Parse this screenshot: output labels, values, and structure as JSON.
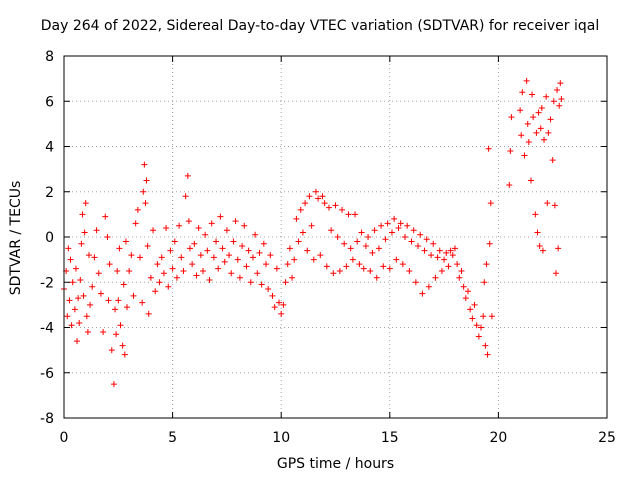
{
  "chart_data": {
    "type": "scatter",
    "title": "Day 264 of 2022, Sidereal Day-to-day VTEC variation (SDTVAR) for receiver iqal",
    "xlabel": "GPS time / hours",
    "ylabel": "SDTVAR / TECUs",
    "xlim": [
      0,
      25
    ],
    "ylim": [
      -8,
      8
    ],
    "xticks": [
      0,
      5,
      10,
      15,
      20,
      25
    ],
    "yticks": [
      -8,
      -6,
      -4,
      -2,
      0,
      2,
      4,
      6,
      8
    ],
    "grid": true,
    "marker": "+",
    "color": "#ff0000",
    "series": [
      {
        "name": "SDTVAR",
        "points": [
          [
            0.0,
            -2.3
          ],
          [
            0.1,
            -1.5
          ],
          [
            0.15,
            -3.5
          ],
          [
            0.2,
            -0.5
          ],
          [
            0.25,
            -2.8
          ],
          [
            0.3,
            -1.0
          ],
          [
            0.35,
            -3.9
          ],
          [
            0.4,
            -2.0
          ],
          [
            0.5,
            -3.2
          ],
          [
            0.55,
            -1.4
          ],
          [
            0.6,
            -4.6
          ],
          [
            0.65,
            -2.7
          ],
          [
            0.7,
            -3.8
          ],
          [
            0.75,
            -1.9
          ],
          [
            0.8,
            -0.3
          ],
          [
            0.85,
            1.0
          ],
          [
            0.9,
            -2.6
          ],
          [
            0.95,
            0.2
          ],
          [
            1.0,
            1.5
          ],
          [
            1.05,
            -3.5
          ],
          [
            1.1,
            -4.2
          ],
          [
            1.15,
            -0.8
          ],
          [
            1.2,
            -3.0
          ],
          [
            1.3,
            -2.2
          ],
          [
            1.4,
            -0.9
          ],
          [
            1.5,
            0.3
          ],
          [
            1.6,
            -1.6
          ],
          [
            1.7,
            -2.5
          ],
          [
            1.8,
            -4.2
          ],
          [
            1.9,
            0.9
          ],
          [
            2.0,
            0.0
          ],
          [
            2.05,
            -2.8
          ],
          [
            2.1,
            -1.2
          ],
          [
            2.2,
            -5.0
          ],
          [
            2.3,
            -6.5
          ],
          [
            2.35,
            -3.2
          ],
          [
            2.4,
            -4.3
          ],
          [
            2.45,
            -1.5
          ],
          [
            2.5,
            -2.8
          ],
          [
            2.55,
            -0.5
          ],
          [
            2.6,
            -3.9
          ],
          [
            2.7,
            -4.8
          ],
          [
            2.75,
            -2.1
          ],
          [
            2.8,
            -5.2
          ],
          [
            2.85,
            -0.2
          ],
          [
            2.9,
            -3.1
          ],
          [
            3.0,
            -1.5
          ],
          [
            3.1,
            -0.8
          ],
          [
            3.2,
            -2.6
          ],
          [
            3.3,
            0.6
          ],
          [
            3.4,
            1.2
          ],
          [
            3.5,
            -0.9
          ],
          [
            3.6,
            -2.9
          ],
          [
            3.65,
            2.0
          ],
          [
            3.7,
            3.2
          ],
          [
            3.75,
            1.5
          ],
          [
            3.8,
            2.5
          ],
          [
            3.85,
            -0.4
          ],
          [
            3.9,
            -3.4
          ],
          [
            4.0,
            -1.8
          ],
          [
            4.1,
            0.3
          ],
          [
            4.2,
            -2.4
          ],
          [
            4.3,
            -1.2
          ],
          [
            4.4,
            -2.0
          ],
          [
            4.5,
            -0.9
          ],
          [
            4.6,
            -1.6
          ],
          [
            4.7,
            0.4
          ],
          [
            4.8,
            -2.2
          ],
          [
            4.9,
            -0.6
          ],
          [
            5.0,
            -1.4
          ],
          [
            5.1,
            -0.2
          ],
          [
            5.2,
            -1.8
          ],
          [
            5.3,
            0.5
          ],
          [
            5.4,
            -0.9
          ],
          [
            5.5,
            -1.5
          ],
          [
            5.6,
            1.8
          ],
          [
            5.7,
            2.7
          ],
          [
            5.75,
            0.7
          ],
          [
            5.8,
            -0.5
          ],
          [
            5.9,
            -1.2
          ],
          [
            6.0,
            -0.3
          ],
          [
            6.1,
            -1.7
          ],
          [
            6.2,
            0.4
          ],
          [
            6.3,
            -0.8
          ],
          [
            6.4,
            -1.5
          ],
          [
            6.5,
            0.1
          ],
          [
            6.6,
            -0.6
          ],
          [
            6.7,
            -1.9
          ],
          [
            6.8,
            0.6
          ],
          [
            6.9,
            -0.9
          ],
          [
            7.0,
            -0.2
          ],
          [
            7.1,
            -1.4
          ],
          [
            7.2,
            0.9
          ],
          [
            7.3,
            -0.5
          ],
          [
            7.4,
            -1.1
          ],
          [
            7.5,
            0.3
          ],
          [
            7.6,
            -0.8
          ],
          [
            7.7,
            -1.6
          ],
          [
            7.8,
            -0.2
          ],
          [
            7.9,
            0.7
          ],
          [
            8.0,
            -1.0
          ],
          [
            8.1,
            -1.8
          ],
          [
            8.2,
            -0.4
          ],
          [
            8.3,
            0.5
          ],
          [
            8.4,
            -1.3
          ],
          [
            8.5,
            -0.6
          ],
          [
            8.6,
            -2.0
          ],
          [
            8.7,
            -0.9
          ],
          [
            8.8,
            0.1
          ],
          [
            8.9,
            -1.6
          ],
          [
            9.0,
            -0.7
          ],
          [
            9.1,
            -2.1
          ],
          [
            9.2,
            -0.3
          ],
          [
            9.3,
            -1.2
          ],
          [
            9.4,
            -2.3
          ],
          [
            9.5,
            -0.8
          ],
          [
            9.6,
            -2.6
          ],
          [
            9.7,
            -3.1
          ],
          [
            9.8,
            -1.4
          ],
          [
            9.9,
            -2.9
          ],
          [
            10.0,
            -3.4
          ],
          [
            10.1,
            -3.0
          ],
          [
            10.2,
            -2.0
          ],
          [
            10.3,
            -1.2
          ],
          [
            10.4,
            -0.5
          ],
          [
            10.5,
            -1.8
          ],
          [
            10.6,
            -1.0
          ],
          [
            10.7,
            0.8
          ],
          [
            10.8,
            -0.2
          ],
          [
            10.9,
            1.2
          ],
          [
            11.0,
            0.2
          ],
          [
            11.1,
            1.5
          ],
          [
            11.2,
            -0.6
          ],
          [
            11.3,
            1.8
          ],
          [
            11.4,
            0.5
          ],
          [
            11.5,
            -1.0
          ],
          [
            11.6,
            2.0
          ],
          [
            11.7,
            1.7
          ],
          [
            11.8,
            -0.8
          ],
          [
            11.9,
            1.8
          ],
          [
            12.0,
            1.5
          ],
          [
            12.1,
            -1.3
          ],
          [
            12.2,
            1.3
          ],
          [
            12.3,
            0.3
          ],
          [
            12.4,
            -1.6
          ],
          [
            12.5,
            1.4
          ],
          [
            12.6,
            0.0
          ],
          [
            12.7,
            -1.5
          ],
          [
            12.8,
            1.2
          ],
          [
            12.9,
            -0.3
          ],
          [
            13.0,
            -1.3
          ],
          [
            13.1,
            1.0
          ],
          [
            13.2,
            -0.5
          ],
          [
            13.3,
            -1.0
          ],
          [
            13.4,
            1.0
          ],
          [
            13.5,
            -0.2
          ],
          [
            13.6,
            -1.2
          ],
          [
            13.7,
            0.2
          ],
          [
            13.8,
            -1.4
          ],
          [
            13.9,
            -0.4
          ],
          [
            14.0,
            0.0
          ],
          [
            14.1,
            -1.5
          ],
          [
            14.2,
            -0.7
          ],
          [
            14.3,
            0.3
          ],
          [
            14.4,
            -1.8
          ],
          [
            14.5,
            -0.5
          ],
          [
            14.6,
            0.5
          ],
          [
            14.7,
            -1.3
          ],
          [
            14.8,
            -0.1
          ],
          [
            14.9,
            0.6
          ],
          [
            15.0,
            -1.4
          ],
          [
            15.1,
            0.2
          ],
          [
            15.2,
            0.8
          ],
          [
            15.3,
            -1.0
          ],
          [
            15.4,
            0.4
          ],
          [
            15.5,
            0.6
          ],
          [
            15.6,
            -1.2
          ],
          [
            15.7,
            0.0
          ],
          [
            15.8,
            0.5
          ],
          [
            15.9,
            -1.5
          ],
          [
            16.0,
            -0.2
          ],
          [
            16.1,
            0.3
          ],
          [
            16.2,
            -2.0
          ],
          [
            16.3,
            -0.4
          ],
          [
            16.4,
            0.1
          ],
          [
            16.5,
            -2.5
          ],
          [
            16.6,
            -0.6
          ],
          [
            16.7,
            -0.1
          ],
          [
            16.8,
            -2.2
          ],
          [
            16.9,
            -0.8
          ],
          [
            17.0,
            -0.3
          ],
          [
            17.1,
            -1.8
          ],
          [
            17.2,
            -0.9
          ],
          [
            17.3,
            -0.6
          ],
          [
            17.4,
            -1.5
          ],
          [
            17.5,
            -1.0
          ],
          [
            17.6,
            -0.7
          ],
          [
            17.7,
            -1.3
          ],
          [
            17.8,
            -0.6
          ],
          [
            17.9,
            -0.8
          ],
          [
            18.0,
            -0.5
          ],
          [
            18.1,
            -1.2
          ],
          [
            18.2,
            -1.8
          ],
          [
            18.3,
            -1.5
          ],
          [
            18.4,
            -2.2
          ],
          [
            18.5,
            -2.7
          ],
          [
            18.6,
            -2.4
          ],
          [
            18.7,
            -3.2
          ],
          [
            18.8,
            -3.6
          ],
          [
            18.9,
            -3.0
          ],
          [
            19.0,
            -3.9
          ],
          [
            19.1,
            -4.4
          ],
          [
            19.2,
            -4.0
          ],
          [
            19.3,
            -3.5
          ],
          [
            19.35,
            -2.0
          ],
          [
            19.4,
            -4.8
          ],
          [
            19.45,
            -1.2
          ],
          [
            19.5,
            -5.2
          ],
          [
            19.55,
            3.9
          ],
          [
            19.6,
            -0.3
          ],
          [
            19.65,
            1.5
          ],
          [
            19.7,
            -3.5
          ],
          [
            20.5,
            2.3
          ],
          [
            20.55,
            3.8
          ],
          [
            20.6,
            5.3
          ],
          [
            21.0,
            5.6
          ],
          [
            21.05,
            4.5
          ],
          [
            21.1,
            6.4
          ],
          [
            21.2,
            3.6
          ],
          [
            21.3,
            6.9
          ],
          [
            21.35,
            5.0
          ],
          [
            21.4,
            4.2
          ],
          [
            21.5,
            2.5
          ],
          [
            21.55,
            6.3
          ],
          [
            21.6,
            5.3
          ],
          [
            21.7,
            1.0
          ],
          [
            21.75,
            4.6
          ],
          [
            21.8,
            0.2
          ],
          [
            21.85,
            5.5
          ],
          [
            21.9,
            -0.4
          ],
          [
            21.95,
            4.8
          ],
          [
            22.0,
            5.7
          ],
          [
            22.05,
            -0.6
          ],
          [
            22.1,
            4.3
          ],
          [
            22.2,
            6.2
          ],
          [
            22.25,
            1.5
          ],
          [
            22.3,
            4.6
          ],
          [
            22.4,
            5.2
          ],
          [
            22.5,
            3.4
          ],
          [
            22.55,
            6.0
          ],
          [
            22.6,
            1.4
          ],
          [
            22.65,
            -1.6
          ],
          [
            22.7,
            6.5
          ],
          [
            22.75,
            -0.5
          ],
          [
            22.8,
            5.8
          ],
          [
            22.85,
            6.8
          ],
          [
            22.9,
            6.1
          ]
        ]
      }
    ]
  }
}
